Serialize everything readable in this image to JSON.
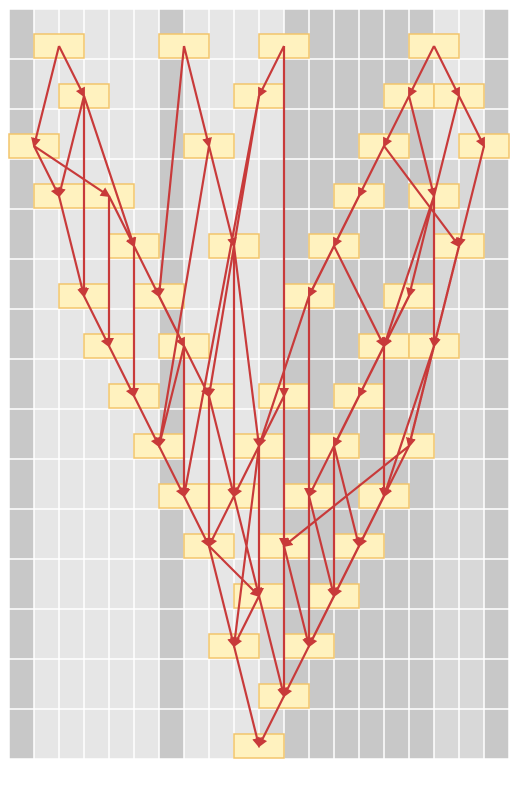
{
  "colors": {
    "light_column": "#e6e6e6",
    "dark_column": "#c8c8c8",
    "grid_line": "#ffffff",
    "node_fill": "#fff2bf",
    "node_stroke": "#f2c46a",
    "arrow": "#c83a3a"
  },
  "grid": {
    "columns": 20,
    "rows": 15,
    "column_shades": [
      "dark",
      "light",
      "light",
      "light",
      "light",
      "light",
      "dark",
      "light",
      "light",
      "light",
      "light",
      "dark",
      "dark",
      "dark",
      "dark",
      "dark",
      "dark",
      "light",
      "light",
      "dark"
    ],
    "bottom_dark_from_column": 10
  },
  "nodes": [
    {
      "id": "a1",
      "col": 1,
      "row": 0
    },
    {
      "id": "a2",
      "col": 6,
      "row": 0
    },
    {
      "id": "a3",
      "col": 10,
      "row": 0
    },
    {
      "id": "a4",
      "col": 16,
      "row": 0
    },
    {
      "id": "b1",
      "col": 2,
      "row": 1
    },
    {
      "id": "b2",
      "col": 9,
      "row": 1
    },
    {
      "id": "b3",
      "col": 15,
      "row": 1
    },
    {
      "id": "b4",
      "col": 17,
      "row": 1
    },
    {
      "id": "c1",
      "col": 0,
      "row": 2
    },
    {
      "id": "c2",
      "col": 7,
      "row": 2
    },
    {
      "id": "c3",
      "col": 14,
      "row": 2
    },
    {
      "id": "c4",
      "col": 18,
      "row": 2
    },
    {
      "id": "d1",
      "col": 1,
      "row": 3
    },
    {
      "id": "d2",
      "col": 3,
      "row": 3
    },
    {
      "id": "d3",
      "col": 13,
      "row": 3
    },
    {
      "id": "d4",
      "col": 16,
      "row": 3
    },
    {
      "id": "e1",
      "col": 4,
      "row": 4
    },
    {
      "id": "e2",
      "col": 8,
      "row": 4
    },
    {
      "id": "e3",
      "col": 12,
      "row": 4
    },
    {
      "id": "e4",
      "col": 17,
      "row": 4
    },
    {
      "id": "f1",
      "col": 2,
      "row": 5
    },
    {
      "id": "f2",
      "col": 5,
      "row": 5
    },
    {
      "id": "f3",
      "col": 11,
      "row": 5
    },
    {
      "id": "f4",
      "col": 15,
      "row": 5
    },
    {
      "id": "g1",
      "col": 3,
      "row": 6
    },
    {
      "id": "g2",
      "col": 6,
      "row": 6
    },
    {
      "id": "g3",
      "col": 14,
      "row": 6
    },
    {
      "id": "g4",
      "col": 16,
      "row": 6
    },
    {
      "id": "h1",
      "col": 4,
      "row": 7
    },
    {
      "id": "h2",
      "col": 7,
      "row": 7
    },
    {
      "id": "h3",
      "col": 10,
      "row": 7
    },
    {
      "id": "h4",
      "col": 13,
      "row": 7
    },
    {
      "id": "i1",
      "col": 5,
      "row": 8
    },
    {
      "id": "i2",
      "col": 9,
      "row": 8
    },
    {
      "id": "i3",
      "col": 12,
      "row": 8
    },
    {
      "id": "i4",
      "col": 15,
      "row": 8
    },
    {
      "id": "j1",
      "col": 6,
      "row": 9
    },
    {
      "id": "j2",
      "col": 8,
      "row": 9
    },
    {
      "id": "j3",
      "col": 11,
      "row": 9
    },
    {
      "id": "j4",
      "col": 14,
      "row": 9
    },
    {
      "id": "k1",
      "col": 7,
      "row": 10
    },
    {
      "id": "k2",
      "col": 10,
      "row": 10
    },
    {
      "id": "k3",
      "col": 13,
      "row": 10
    },
    {
      "id": "l1",
      "col": 9,
      "row": 11
    },
    {
      "id": "l2",
      "col": 12,
      "row": 11
    },
    {
      "id": "m1",
      "col": 8,
      "row": 12
    },
    {
      "id": "m2",
      "col": 11,
      "row": 12
    },
    {
      "id": "n1",
      "col": 10,
      "row": 13
    },
    {
      "id": "o1",
      "col": 9,
      "row": 14
    }
  ],
  "edges": [
    [
      "a1",
      "b1"
    ],
    [
      "a1",
      "c1"
    ],
    [
      "a2",
      "c2"
    ],
    [
      "a2",
      "f2"
    ],
    [
      "a3",
      "b2"
    ],
    [
      "a3",
      "h3"
    ],
    [
      "a4",
      "b3"
    ],
    [
      "a4",
      "b4"
    ],
    [
      "b1",
      "d1"
    ],
    [
      "b1",
      "e1"
    ],
    [
      "b1",
      "f1"
    ],
    [
      "b2",
      "h2"
    ],
    [
      "b2",
      "j1"
    ],
    [
      "b3",
      "c3"
    ],
    [
      "b3",
      "d4"
    ],
    [
      "b4",
      "c4"
    ],
    [
      "b4",
      "f4"
    ],
    [
      "c1",
      "d1"
    ],
    [
      "c1",
      "d2"
    ],
    [
      "c2",
      "e2"
    ],
    [
      "c2",
      "i1"
    ],
    [
      "c3",
      "d3"
    ],
    [
      "c3",
      "e4"
    ],
    [
      "c4",
      "e4"
    ],
    [
      "d1",
      "f1"
    ],
    [
      "d2",
      "e1"
    ],
    [
      "d2",
      "g1"
    ],
    [
      "d3",
      "f3"
    ],
    [
      "d3",
      "e3"
    ],
    [
      "d4",
      "g3"
    ],
    [
      "d4",
      "g4"
    ],
    [
      "e1",
      "f2"
    ],
    [
      "e1",
      "h1"
    ],
    [
      "e2",
      "i2"
    ],
    [
      "e2",
      "j2"
    ],
    [
      "e3",
      "f3"
    ],
    [
      "e3",
      "g3"
    ],
    [
      "e4",
      "g4"
    ],
    [
      "e4",
      "i4"
    ],
    [
      "f1",
      "g1"
    ],
    [
      "f2",
      "g2"
    ],
    [
      "f2",
      "h2"
    ],
    [
      "f3",
      "i2"
    ],
    [
      "f3",
      "j3"
    ],
    [
      "f4",
      "g3"
    ],
    [
      "f4",
      "h4"
    ],
    [
      "g1",
      "h1"
    ],
    [
      "g2",
      "i1"
    ],
    [
      "g2",
      "j1"
    ],
    [
      "g3",
      "j4"
    ],
    [
      "g3",
      "i3"
    ],
    [
      "g4",
      "i4"
    ],
    [
      "g4",
      "j4"
    ],
    [
      "h1",
      "i1"
    ],
    [
      "h2",
      "k1"
    ],
    [
      "h2",
      "j2"
    ],
    [
      "h3",
      "j2"
    ],
    [
      "h3",
      "k2"
    ],
    [
      "h4",
      "i3"
    ],
    [
      "h4",
      "j3"
    ],
    [
      "i1",
      "j1"
    ],
    [
      "i2",
      "l1"
    ],
    [
      "i2",
      "m1"
    ],
    [
      "i3",
      "k3"
    ],
    [
      "i3",
      "l2"
    ],
    [
      "i4",
      "j4"
    ],
    [
      "i4",
      "k2"
    ],
    [
      "j1",
      "k1"
    ],
    [
      "j2",
      "l1"
    ],
    [
      "j2",
      "k1"
    ],
    [
      "j3",
      "m2"
    ],
    [
      "j3",
      "l2"
    ],
    [
      "j4",
      "k3"
    ],
    [
      "j4",
      "m2"
    ],
    [
      "k1",
      "m1"
    ],
    [
      "k1",
      "l1"
    ],
    [
      "k2",
      "n1"
    ],
    [
      "k2",
      "m2"
    ],
    [
      "k3",
      "l2"
    ],
    [
      "l1",
      "m1"
    ],
    [
      "l1",
      "n1"
    ],
    [
      "l2",
      "m2"
    ],
    [
      "m1",
      "o1"
    ],
    [
      "m2",
      "n1"
    ],
    [
      "n1",
      "o1"
    ]
  ]
}
